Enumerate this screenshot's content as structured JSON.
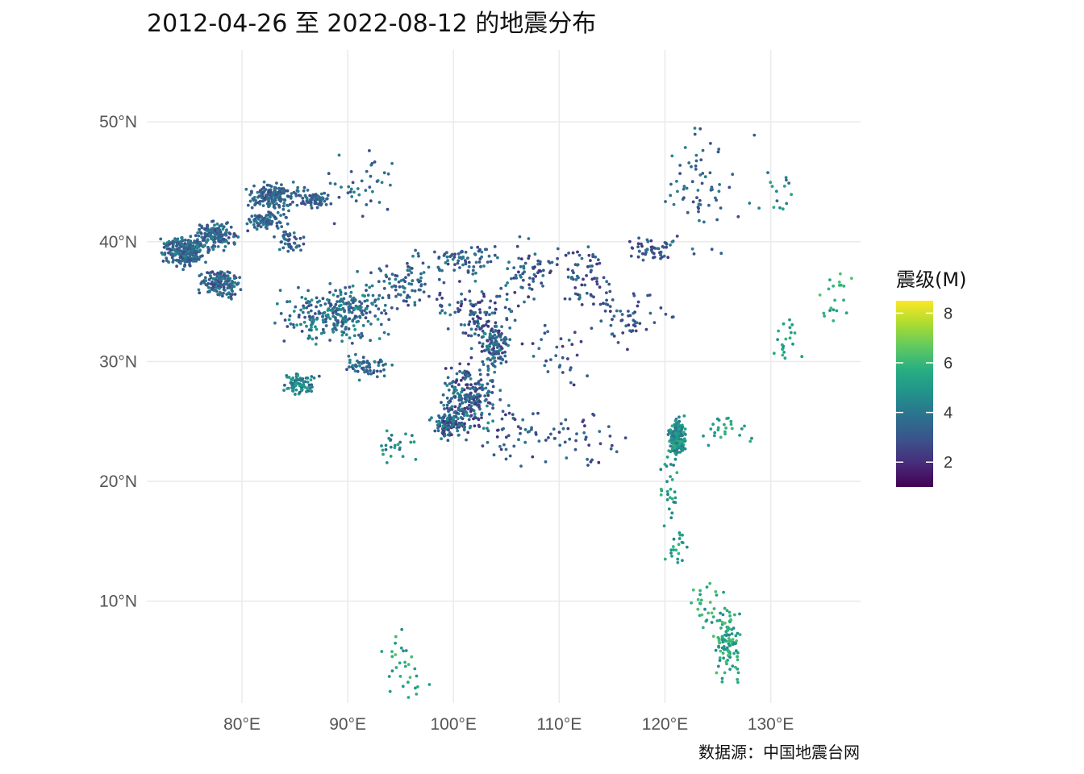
{
  "chart_data": {
    "type": "scatter",
    "title": "2012-04-26 至 2022-08-12 的地震分布",
    "caption": "数据源：中国地震台网",
    "xlabel": "",
    "ylabel": "",
    "xlim": [
      71,
      138.5
    ],
    "ylim": [
      1.5,
      56
    ],
    "x_ticks": [
      80,
      90,
      100,
      110,
      120,
      130
    ],
    "x_tick_labels": [
      "80°E",
      "90°E",
      "100°E",
      "110°E",
      "120°E",
      "130°E"
    ],
    "y_ticks": [
      10,
      20,
      30,
      40,
      50
    ],
    "y_tick_labels": [
      "10°N",
      "20°N",
      "30°N",
      "40°N",
      "50°N"
    ],
    "grid": true,
    "legend": {
      "title": "震级(M)",
      "position": "right",
      "type": "colorbar",
      "colormap": "viridis",
      "range": [
        1,
        8.5
      ],
      "ticks": [
        2,
        4,
        6,
        8
      ],
      "tick_labels": [
        "2",
        "4",
        "6",
        "8"
      ]
    },
    "clusters": [
      {
        "lon": 74.5,
        "lat": 39.2,
        "spread_lon": 1.6,
        "spread_lat": 1.0,
        "count": 260,
        "mag": [
          2.5,
          4.5
        ]
      },
      {
        "lon": 77.5,
        "lat": 40.5,
        "spread_lon": 1.4,
        "spread_lat": 0.9,
        "count": 150,
        "mag": [
          2.5,
          4.5
        ]
      },
      {
        "lon": 78.0,
        "lat": 36.5,
        "spread_lon": 1.4,
        "spread_lat": 1.0,
        "count": 150,
        "mag": [
          2.5,
          4.5
        ]
      },
      {
        "lon": 83.0,
        "lat": 43.8,
        "spread_lon": 2.2,
        "spread_lat": 0.8,
        "count": 170,
        "mag": [
          2.5,
          4.2
        ]
      },
      {
        "lon": 87.0,
        "lat": 43.5,
        "spread_lon": 1.2,
        "spread_lat": 0.5,
        "count": 70,
        "mag": [
          2.5,
          4.2
        ]
      },
      {
        "lon": 82.5,
        "lat": 41.8,
        "spread_lon": 1.6,
        "spread_lat": 0.6,
        "count": 80,
        "mag": [
          2.5,
          4.2
        ]
      },
      {
        "lon": 84.5,
        "lat": 40.0,
        "spread_lon": 1.0,
        "spread_lat": 0.8,
        "count": 40,
        "mag": [
          2.5,
          4.2
        ]
      },
      {
        "lon": 89.0,
        "lat": 34.0,
        "spread_lon": 4.0,
        "spread_lat": 1.8,
        "count": 280,
        "mag": [
          2.5,
          5.0
        ]
      },
      {
        "lon": 85.5,
        "lat": 28.2,
        "spread_lon": 1.2,
        "spread_lat": 0.7,
        "count": 80,
        "mag": [
          3.0,
          5.5
        ]
      },
      {
        "lon": 92.0,
        "lat": 29.5,
        "spread_lon": 1.8,
        "spread_lat": 0.8,
        "count": 60,
        "mag": [
          2.5,
          4.5
        ]
      },
      {
        "lon": 101.5,
        "lat": 27.0,
        "spread_lon": 1.8,
        "spread_lat": 2.5,
        "count": 230,
        "mag": [
          2.0,
          4.8
        ]
      },
      {
        "lon": 99.5,
        "lat": 24.8,
        "spread_lon": 1.2,
        "spread_lat": 0.9,
        "count": 110,
        "mag": [
          2.0,
          4.8
        ]
      },
      {
        "lon": 104.0,
        "lat": 31.2,
        "spread_lon": 1.0,
        "spread_lat": 1.3,
        "count": 110,
        "mag": [
          2.0,
          4.8
        ]
      },
      {
        "lon": 102.0,
        "lat": 34.0,
        "spread_lon": 3.0,
        "spread_lat": 2.0,
        "count": 120,
        "mag": [
          2.0,
          4.5
        ]
      },
      {
        "lon": 96.0,
        "lat": 36.5,
        "spread_lon": 3.5,
        "spread_lat": 1.8,
        "count": 90,
        "mag": [
          2.5,
          4.5
        ]
      },
      {
        "lon": 101.0,
        "lat": 38.5,
        "spread_lon": 3.0,
        "spread_lat": 1.0,
        "count": 70,
        "mag": [
          2.5,
          4.5
        ]
      },
      {
        "lon": 107.0,
        "lat": 37.5,
        "spread_lon": 2.0,
        "spread_lat": 2.0,
        "count": 60,
        "mag": [
          2.0,
          4.2
        ]
      },
      {
        "lon": 112.5,
        "lat": 37.0,
        "spread_lon": 2.0,
        "spread_lat": 2.2,
        "count": 60,
        "mag": [
          2.0,
          4.0
        ]
      },
      {
        "lon": 118.5,
        "lat": 39.4,
        "spread_lon": 1.5,
        "spread_lat": 0.7,
        "count": 50,
        "mag": [
          2.0,
          4.0
        ]
      },
      {
        "lon": 116.0,
        "lat": 34.0,
        "spread_lon": 3.5,
        "spread_lat": 2.0,
        "count": 60,
        "mag": [
          2.0,
          4.0
        ]
      },
      {
        "lon": 121.2,
        "lat": 23.6,
        "spread_lon": 0.6,
        "spread_lat": 1.2,
        "count": 180,
        "mag": [
          3.5,
          5.8
        ]
      },
      {
        "lon": 120.5,
        "lat": 19.5,
        "spread_lon": 0.8,
        "spread_lat": 2.5,
        "count": 30,
        "mag": [
          4.0,
          6.0
        ]
      },
      {
        "lon": 121.0,
        "lat": 14.5,
        "spread_lon": 1.0,
        "spread_lat": 1.5,
        "count": 20,
        "mag": [
          4.5,
          6.0
        ]
      },
      {
        "lon": 126.0,
        "lat": 6.5,
        "spread_lon": 1.2,
        "spread_lat": 2.6,
        "count": 110,
        "mag": [
          4.5,
          6.5
        ]
      },
      {
        "lon": 124.0,
        "lat": 10.0,
        "spread_lon": 1.2,
        "spread_lat": 1.6,
        "count": 25,
        "mag": [
          4.5,
          6.5
        ]
      },
      {
        "lon": 95.5,
        "lat": 4.5,
        "spread_lon": 1.8,
        "spread_lat": 2.5,
        "count": 30,
        "mag": [
          4.5,
          6.5
        ]
      },
      {
        "lon": 94.5,
        "lat": 23.0,
        "spread_lon": 1.5,
        "spread_lat": 1.2,
        "count": 25,
        "mag": [
          3.5,
          5.5
        ]
      },
      {
        "lon": 126.0,
        "lat": 24.5,
        "spread_lon": 2.0,
        "spread_lat": 1.2,
        "count": 25,
        "mag": [
          4.5,
          6.0
        ]
      },
      {
        "lon": 131.5,
        "lat": 31.5,
        "spread_lon": 1.2,
        "spread_lat": 1.5,
        "count": 20,
        "mag": [
          4.5,
          6.0
        ]
      },
      {
        "lon": 136.0,
        "lat": 35.5,
        "spread_lon": 1.5,
        "spread_lat": 2.5,
        "count": 20,
        "mag": [
          4.5,
          6.5
        ]
      },
      {
        "lon": 123.0,
        "lat": 44.5,
        "spread_lon": 3.5,
        "spread_lat": 4.0,
        "count": 70,
        "mag": [
          2.5,
          4.5
        ]
      },
      {
        "lon": 130.5,
        "lat": 44.0,
        "spread_lon": 1.5,
        "spread_lat": 2.0,
        "count": 15,
        "mag": [
          3.5,
          6.0
        ]
      },
      {
        "lon": 91.5,
        "lat": 45.0,
        "spread_lon": 2.5,
        "spread_lat": 2.5,
        "count": 40,
        "mag": [
          2.5,
          4.5
        ]
      },
      {
        "lon": 106.0,
        "lat": 24.0,
        "spread_lon": 3.0,
        "spread_lat": 2.0,
        "count": 50,
        "mag": [
          2.0,
          4.0
        ]
      },
      {
        "lon": 112.0,
        "lat": 23.5,
        "spread_lon": 3.5,
        "spread_lat": 2.0,
        "count": 40,
        "mag": [
          2.0,
          4.0
        ]
      },
      {
        "lon": 110.0,
        "lat": 30.5,
        "spread_lon": 3.0,
        "spread_lat": 2.0,
        "count": 30,
        "mag": [
          2.0,
          4.0
        ]
      }
    ]
  }
}
